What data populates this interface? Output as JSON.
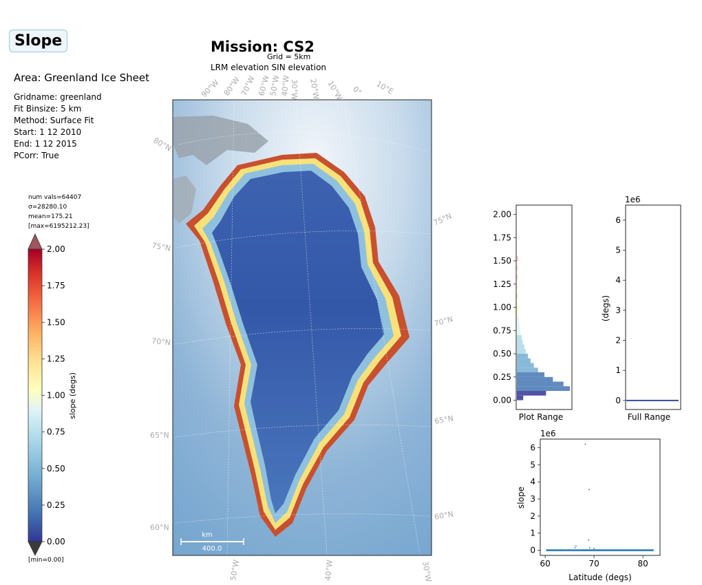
{
  "header": {
    "slope_label": "Slope",
    "area": "Area: Greenland Ice Sheet",
    "mission": "Mission: CS2",
    "grid": "Grid = 5km",
    "subtitle": "LRM elevation SIN elevation"
  },
  "info_lines": [
    "Gridname: greenland",
    "Fit Binsize: 5 km",
    "Method: Surface Fit",
    "Start: 1 12 2010",
    "End: 1 12 2015",
    "PCorr: True"
  ],
  "stats": {
    "num_vals": "num vals=64407",
    "sigma": "σ=28280.10",
    "mean": "mean=175.21",
    "max": "[max=6195212.23]",
    "min": "[min=0.00]"
  },
  "colorbar": {
    "label": "slope (degs)",
    "ticks": [
      "0.00",
      "0.25",
      "0.50",
      "0.75",
      "1.00",
      "1.25",
      "1.50",
      "1.75",
      "2.00"
    ],
    "range": [
      0,
      2
    ],
    "colors": [
      "#313695",
      "#4575b4",
      "#74add1",
      "#abd9e9",
      "#e0f3f8",
      "#ffffbf",
      "#fee090",
      "#fdae61",
      "#f46d43",
      "#d73027",
      "#a50026"
    ],
    "extend_low": "#3b3b3b",
    "extend_high": "#a1555c"
  },
  "map": {
    "lon_labels_top": [
      "90°W",
      "80°W",
      "70°W",
      "60°W",
      "50°W",
      "40°W",
      "30°W",
      "20°W",
      "10°W",
      "0°",
      "10°E"
    ],
    "lon_labels_bottom": [
      "50°W",
      "40°W",
      "30°W"
    ],
    "lat_labels_left": [
      "80°N",
      "75°N",
      "70°N",
      "65°N",
      "60°N"
    ],
    "lat_labels_right": [
      "75°N",
      "70°N",
      "65°N",
      "60°N"
    ],
    "scalebar_unit": "km",
    "scalebar_value": "400.0"
  },
  "chart_data": [
    {
      "type": "bar",
      "orientation": "horizontal-histogram",
      "xlabel": "Plot Range",
      "ylim": [
        -0.1,
        2.1
      ],
      "yticks": [
        "0.00",
        "0.25",
        "0.50",
        "0.75",
        "1.00",
        "1.25",
        "1.50",
        "1.75",
        "2.00"
      ],
      "bins": [
        {
          "y": 0.0,
          "count": 0.12
        },
        {
          "y": 0.05,
          "count": 0.55
        },
        {
          "y": 0.1,
          "count": 1.0
        },
        {
          "y": 0.15,
          "count": 0.88
        },
        {
          "y": 0.2,
          "count": 0.68
        },
        {
          "y": 0.25,
          "count": 0.52
        },
        {
          "y": 0.3,
          "count": 0.4
        },
        {
          "y": 0.35,
          "count": 0.32
        },
        {
          "y": 0.4,
          "count": 0.26
        },
        {
          "y": 0.45,
          "count": 0.21
        },
        {
          "y": 0.5,
          "count": 0.17
        },
        {
          "y": 0.55,
          "count": 0.14
        },
        {
          "y": 0.6,
          "count": 0.11
        },
        {
          "y": 0.65,
          "count": 0.09
        },
        {
          "y": 0.7,
          "count": 0.07
        },
        {
          "y": 0.75,
          "count": 0.06
        },
        {
          "y": 0.8,
          "count": 0.05
        },
        {
          "y": 0.85,
          "count": 0.04
        },
        {
          "y": 0.9,
          "count": 0.03
        },
        {
          "y": 0.95,
          "count": 0.03
        },
        {
          "y": 1.0,
          "count": 0.02
        },
        {
          "y": 1.1,
          "count": 0.015
        },
        {
          "y": 1.2,
          "count": 0.01
        },
        {
          "y": 1.3,
          "count": 0.01
        },
        {
          "y": 1.4,
          "count": 0.008
        },
        {
          "y": 1.5,
          "count": 0.006
        }
      ]
    },
    {
      "type": "bar",
      "orientation": "horizontal-histogram",
      "xlabel": "Full Range",
      "ylabel": "(degs)",
      "scale_label": "1e6",
      "ylim": [
        -0.3,
        6.5
      ],
      "yticks": [
        "0",
        "1",
        "2",
        "3",
        "4",
        "5",
        "6"
      ],
      "bins": [
        {
          "y": 0.0,
          "count": 1.0
        }
      ]
    },
    {
      "type": "scatter",
      "xlabel": "Latitude (degs)",
      "ylabel": "slope",
      "scale_label": "1e6",
      "xlim": [
        59,
        83.5
      ],
      "ylim": [
        -0.3,
        6.5
      ],
      "xticks": [
        "60",
        "70",
        "80"
      ],
      "yticks": [
        "0",
        "1",
        "2",
        "3",
        "4",
        "5",
        "6"
      ],
      "points": [
        {
          "x": 68.2,
          "y": 6.2
        },
        {
          "x": 69.0,
          "y": 3.55
        },
        {
          "x": 68.9,
          "y": 0.6
        },
        {
          "x": 66.3,
          "y": 0.25
        },
        {
          "x": 66.1,
          "y": 0.15
        },
        {
          "x": 69.1,
          "y": 0.15
        },
        {
          "x": 70.0,
          "y": 0.1
        }
      ],
      "baseline": {
        "x_range": [
          60.2,
          82.2
        ],
        "y": 0.0
      }
    }
  ]
}
